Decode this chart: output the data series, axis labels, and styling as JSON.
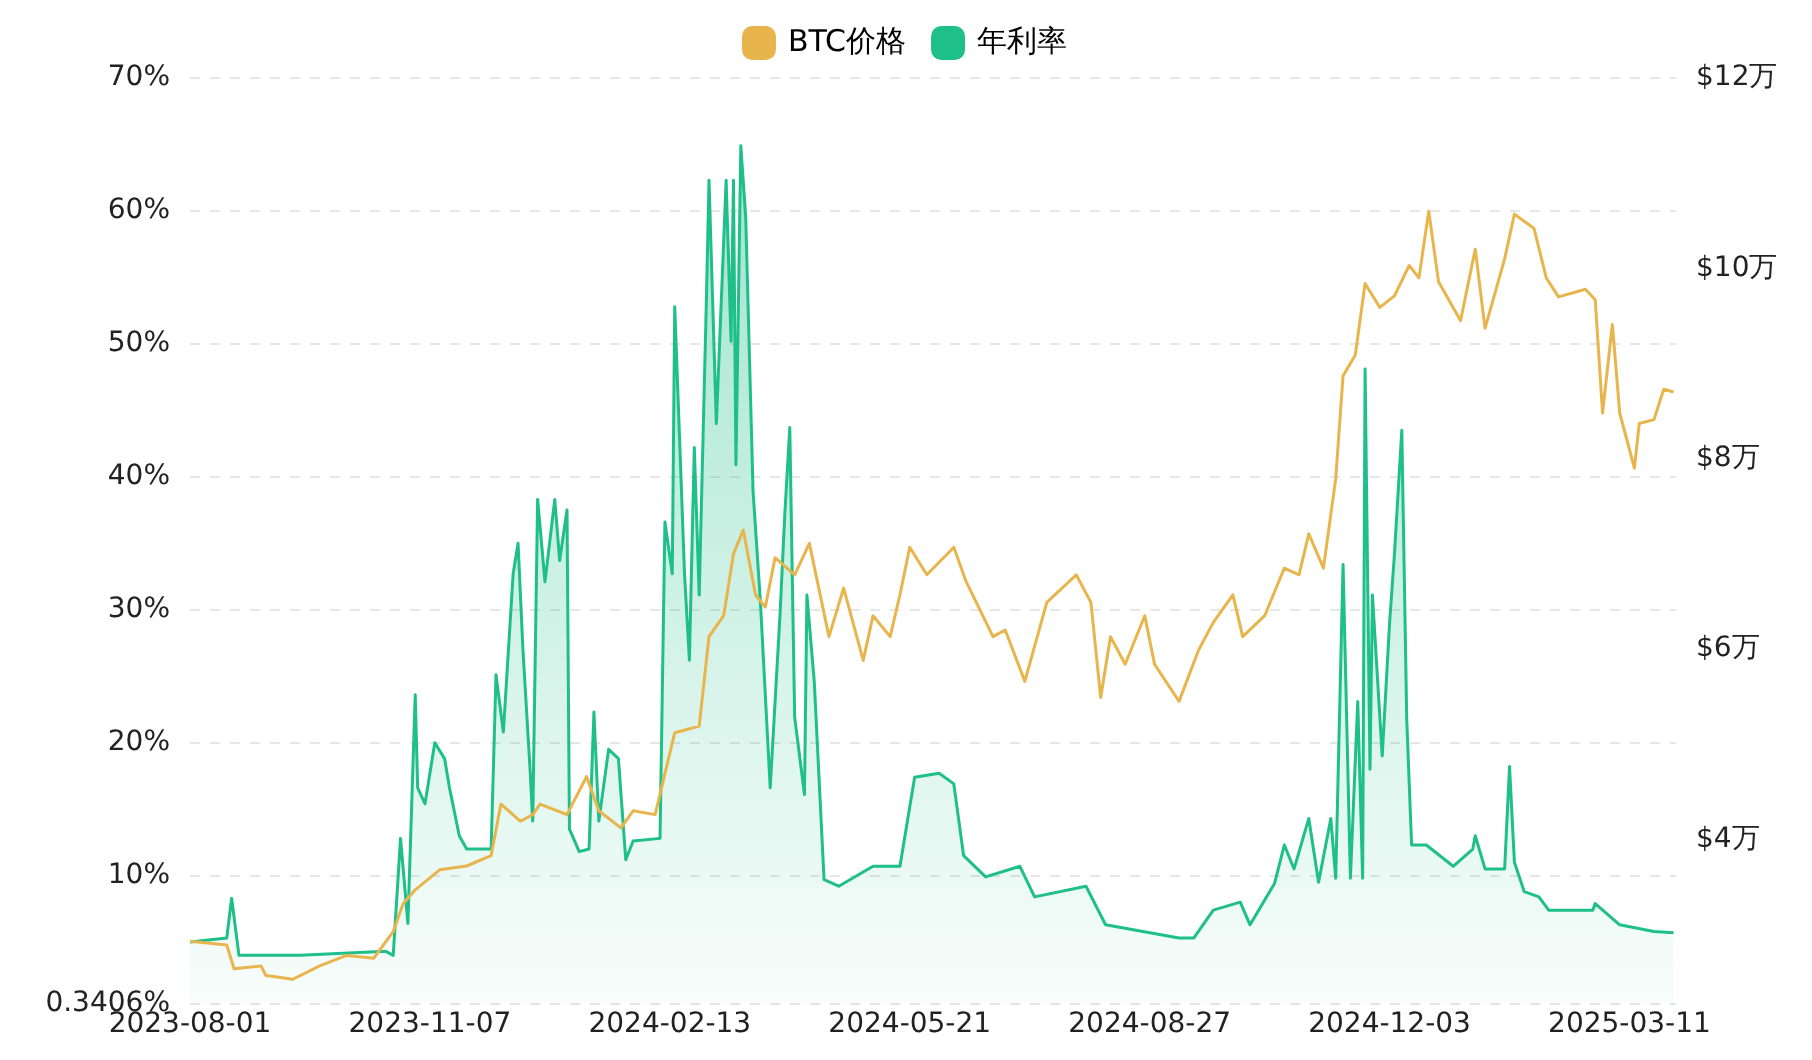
{
  "chart_data": {
    "type": "line",
    "legend": "top",
    "grid": "y",
    "marker": "none",
    "line_style": "solid",
    "xlim": [
      "2023-08-01",
      "2025-03-30"
    ],
    "xticks": [
      "2023-08-01",
      "2023-11-07",
      "2024-02-13",
      "2024-05-21",
      "2024-08-27",
      "2024-12-03",
      "2025-03-11"
    ],
    "ylim": [
      0.3406,
      70
    ],
    "yticks": [
      {
        "value": 0.3406,
        "label": "0.3406%"
      },
      {
        "value": 10,
        "label": "10%"
      },
      {
        "value": 20,
        "label": "20%"
      },
      {
        "value": 30,
        "label": "30%"
      },
      {
        "value": 40,
        "label": "40%"
      },
      {
        "value": 50,
        "label": "50%"
      },
      {
        "value": 60,
        "label": "60%"
      },
      {
        "value": 70,
        "label": "70%"
      }
    ],
    "y2lim": [
      2.27,
      12
    ],
    "y2ticks": [
      {
        "value": 4,
        "label": "$4万"
      },
      {
        "value": 6,
        "label": "$6万"
      },
      {
        "value": 8,
        "label": "$8万"
      },
      {
        "value": 10,
        "label": "$10万"
      },
      {
        "value": 12,
        "label": "$12万"
      }
    ],
    "series": [
      {
        "name": "BTC价格",
        "axis": "y2",
        "color": "#e8b54d",
        "x": [
          "2023-08-01",
          "2023-08-16",
          "2023-08-19",
          "2023-08-30",
          "2023-09-01",
          "2023-09-12",
          "2023-09-23",
          "2023-10-04",
          "2023-10-15",
          "2023-10-19",
          "2023-10-23",
          "2023-10-27",
          "2023-11-01",
          "2023-11-11",
          "2023-11-22",
          "2023-12-02",
          "2023-12-06",
          "2023-12-14",
          "2023-12-19",
          "2023-12-22",
          "2024-01-02",
          "2024-01-10",
          "2024-01-15",
          "2024-01-24",
          "2024-01-29",
          "2024-02-07",
          "2024-02-11",
          "2024-02-15",
          "2024-02-25",
          "2024-02-29",
          "2024-03-06",
          "2024-03-10",
          "2024-03-14",
          "2024-03-19",
          "2024-03-23",
          "2024-03-27",
          "2024-04-04",
          "2024-04-10",
          "2024-04-18",
          "2024-04-24",
          "2024-05-02",
          "2024-05-06",
          "2024-05-13",
          "2024-05-17",
          "2024-05-21",
          "2024-05-28",
          "2024-06-08",
          "2024-06-13",
          "2024-06-24",
          "2024-06-29",
          "2024-07-07",
          "2024-07-16",
          "2024-07-28",
          "2024-08-03",
          "2024-08-07",
          "2024-08-11",
          "2024-08-17",
          "2024-08-25",
          "2024-08-29",
          "2024-09-08",
          "2024-09-16",
          "2024-09-22",
          "2024-09-30",
          "2024-10-04",
          "2024-10-13",
          "2024-10-21",
          "2024-10-27",
          "2024-10-31",
          "2024-11-06",
          "2024-11-11",
          "2024-11-14",
          "2024-11-19",
          "2024-11-23",
          "2024-11-29",
          "2024-12-05",
          "2024-12-11",
          "2024-12-15",
          "2024-12-19",
          "2024-12-23",
          "2025-01-01",
          "2025-01-07",
          "2025-01-11",
          "2025-01-19",
          "2025-01-23",
          "2025-01-31",
          "2025-02-05",
          "2025-02-10",
          "2025-02-21",
          "2025-02-25",
          "2025-02-28",
          "2025-03-04",
          "2025-03-07",
          "2025-03-13",
          "2025-03-15",
          "2025-03-21",
          "2025-03-25",
          "2025-03-29"
        ],
        "values": [
          2.93,
          2.89,
          2.64,
          2.67,
          2.57,
          2.53,
          2.67,
          2.78,
          2.75,
          2.89,
          3.03,
          3.32,
          3.47,
          3.68,
          3.72,
          3.83,
          4.37,
          4.19,
          4.26,
          4.37,
          4.26,
          4.66,
          4.3,
          4.12,
          4.3,
          4.26,
          4.69,
          5.12,
          5.19,
          6.13,
          6.35,
          7.0,
          7.25,
          6.57,
          6.44,
          6.96,
          6.78,
          7.11,
          6.13,
          6.64,
          5.88,
          6.35,
          6.13,
          6.57,
          7.07,
          6.78,
          7.07,
          6.71,
          6.13,
          6.2,
          5.66,
          6.49,
          6.78,
          6.49,
          5.49,
          6.13,
          5.84,
          6.35,
          5.84,
          5.45,
          5.99,
          6.28,
          6.57,
          6.13,
          6.35,
          6.85,
          6.78,
          7.21,
          6.85,
          7.79,
          8.87,
          9.09,
          9.84,
          9.59,
          9.71,
          10.03,
          9.9,
          10.6,
          9.86,
          9.45,
          10.2,
          9.37,
          10.1,
          10.57,
          10.42,
          9.9,
          9.7,
          9.78,
          9.67,
          8.48,
          9.41,
          8.48,
          7.9,
          8.37,
          8.41,
          8.73,
          8.7
        ]
      },
      {
        "name": "年利率",
        "type": "area",
        "color": "#1fbf8a",
        "x": [
          "2023-08-01",
          "2023-08-16",
          "2023-08-18",
          "2023-08-21",
          "2023-09-15",
          "2023-10-20",
          "2023-10-23",
          "2023-10-26",
          "2023-10-29",
          "2023-11-01",
          "2023-11-02",
          "2023-11-05",
          "2023-11-09",
          "2023-11-13",
          "2023-11-15",
          "2023-11-19",
          "2023-11-22",
          "2023-12-02",
          "2023-12-04",
          "2023-12-07",
          "2023-12-11",
          "2023-12-13",
          "2023-12-15",
          "2023-12-18",
          "2023-12-19",
          "2023-12-21",
          "2023-12-24",
          "2023-12-28",
          "2023-12-30",
          "2024-01-02",
          "2024-01-03",
          "2024-01-07",
          "2024-01-11",
          "2024-01-13",
          "2024-01-15",
          "2024-01-19",
          "2024-01-23",
          "2024-01-26",
          "2024-01-29",
          "2024-02-09",
          "2024-02-11",
          "2024-02-14",
          "2024-02-15",
          "2024-02-19",
          "2024-02-21",
          "2024-02-23",
          "2024-02-25",
          "2024-02-28",
          "2024-02-29",
          "2024-03-03",
          "2024-03-07",
          "2024-03-09",
          "2024-03-10",
          "2024-03-11",
          "2024-03-13",
          "2024-03-15",
          "2024-03-18",
          "2024-03-21",
          "2024-03-25",
          "2024-03-29",
          "2024-03-31",
          "2024-04-02",
          "2024-04-04",
          "2024-04-08",
          "2024-04-09",
          "2024-04-12",
          "2024-04-16",
          "2024-04-22",
          "2024-05-06",
          "2024-05-17",
          "2024-05-23",
          "2024-06-02",
          "2024-06-08",
          "2024-06-12",
          "2024-06-21",
          "2024-07-05",
          "2024-07-11",
          "2024-08-01",
          "2024-08-09",
          "2024-09-08",
          "2024-09-14",
          "2024-09-22",
          "2024-10-03",
          "2024-10-07",
          "2024-10-17",
          "2024-10-21",
          "2024-10-25",
          "2024-10-31",
          "2024-11-04",
          "2024-11-09",
          "2024-11-11",
          "2024-11-14",
          "2024-11-17",
          "2024-11-20",
          "2024-11-22",
          "2024-11-23",
          "2024-11-25",
          "2024-11-26",
          "2024-11-30",
          "2024-12-03",
          "2024-12-05",
          "2024-12-08",
          "2024-12-10",
          "2024-12-12",
          "2024-12-18",
          "2024-12-29",
          "2025-01-06",
          "2025-01-07",
          "2025-01-11",
          "2025-01-19",
          "2025-01-21",
          "2025-01-23",
          "2025-01-27",
          "2025-02-02",
          "2025-02-06",
          "2025-02-24",
          "2025-02-25",
          "2025-03-07",
          "2025-03-21",
          "2025-03-29"
        ],
        "values": [
          5.0,
          5.3,
          8.3,
          4.0,
          4.0,
          4.3,
          4.0,
          12.8,
          6.4,
          23.6,
          16.6,
          15.4,
          20.0,
          18.8,
          16.6,
          13.0,
          12.0,
          12.0,
          25.1,
          20.8,
          32.7,
          35.0,
          27.0,
          17.7,
          14.1,
          38.3,
          32.1,
          38.3,
          33.7,
          37.5,
          13.5,
          11.8,
          12.0,
          22.3,
          14.1,
          19.5,
          18.8,
          11.2,
          12.6,
          12.8,
          36.6,
          32.7,
          52.8,
          32.7,
          26.2,
          42.2,
          31.1,
          53.8,
          62.3,
          44.0,
          62.3,
          50.2,
          62.3,
          40.9,
          64.9,
          59.5,
          38.9,
          30.6,
          16.6,
          29.6,
          37.3,
          43.7,
          21.9,
          16.1,
          31.1,
          24.6,
          9.7,
          9.2,
          10.7,
          10.7,
          17.4,
          17.7,
          16.9,
          11.5,
          9.9,
          10.7,
          8.4,
          9.2,
          6.3,
          5.3,
          5.3,
          7.4,
          8.0,
          6.3,
          9.4,
          12.3,
          10.5,
          14.3,
          9.5,
          14.3,
          9.8,
          33.4,
          9.8,
          23.1,
          9.8,
          48.1,
          18.0,
          31.1,
          19.0,
          29.0,
          34.2,
          43.5,
          21.8,
          12.3,
          12.3,
          10.7,
          12.0,
          13.0,
          10.5,
          10.5,
          18.2,
          11.0,
          8.8,
          8.4,
          7.4,
          7.4,
          7.9,
          6.3,
          5.8,
          5.7
        ]
      }
    ]
  }
}
